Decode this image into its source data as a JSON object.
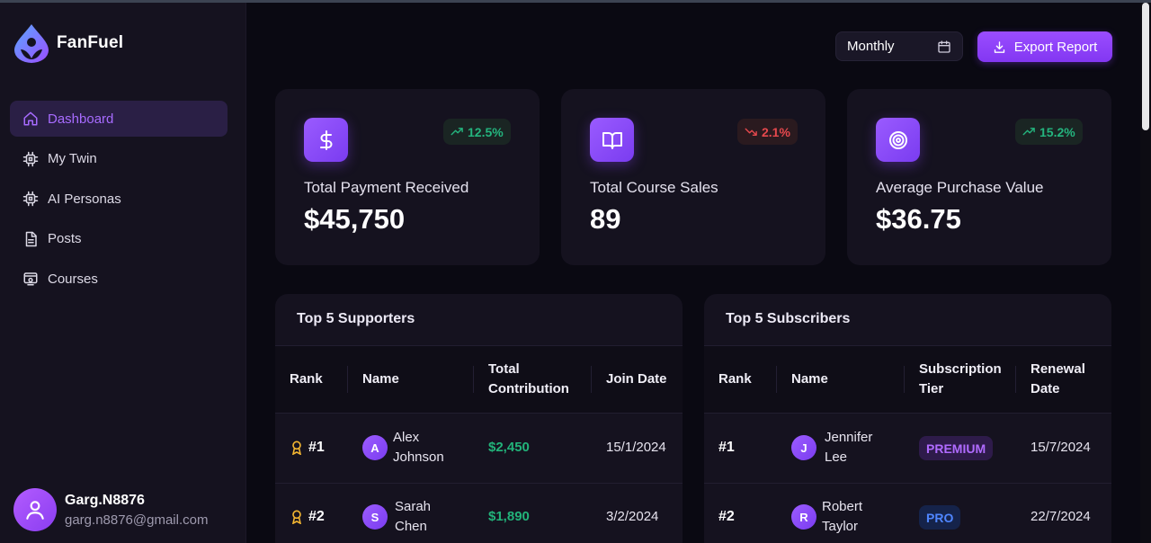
{
  "brand": {
    "name": "FanFuel"
  },
  "sidebar": {
    "items": [
      {
        "label": "Dashboard",
        "icon": "home-icon",
        "active": true
      },
      {
        "label": "My Twin",
        "icon": "chip-icon",
        "active": false
      },
      {
        "label": "AI Personas",
        "icon": "chip-icon",
        "active": false
      },
      {
        "label": "Posts",
        "icon": "document-icon",
        "active": false
      },
      {
        "label": "Courses",
        "icon": "course-icon",
        "active": false
      }
    ]
  },
  "user": {
    "name": "Garg.N8876",
    "email": "garg.n8876@gmail.com"
  },
  "toolbar": {
    "period": "Monthly",
    "export_label": "Export Report"
  },
  "stats": [
    {
      "label": "Total Payment Received",
      "value": "$45,750",
      "trend": "12.5%",
      "direction": "up",
      "icon": "dollar-icon"
    },
    {
      "label": "Total Course Sales",
      "value": "89",
      "trend": "2.1%",
      "direction": "down",
      "icon": "book-icon"
    },
    {
      "label": "Average Purchase Value",
      "value": "$36.75",
      "trend": "15.2%",
      "direction": "up",
      "icon": "target-icon"
    }
  ],
  "supporters": {
    "title": "Top 5 Supporters",
    "headers": [
      "Rank",
      "Name",
      "Total Contribution",
      "Join Date"
    ],
    "rows": [
      {
        "rank": "#1",
        "initial": "A",
        "name": "Alex Johnson",
        "amount": "$2,450",
        "date": "15/1/2024"
      },
      {
        "rank": "#2",
        "initial": "S",
        "name": "Sarah Chen",
        "amount": "$1,890",
        "date": "3/2/2024"
      }
    ]
  },
  "subscribers": {
    "title": "Top 5 Subscribers",
    "headers": [
      "Rank",
      "Name",
      "Subscription Tier",
      "Renewal Date"
    ],
    "rows": [
      {
        "rank": "#1",
        "initial": "J",
        "name": "Jennifer Lee",
        "tier": "PREMIUM",
        "date": "15/7/2024"
      },
      {
        "rank": "#2",
        "initial": "R",
        "name": "Robert Taylor",
        "tier": "PRO",
        "date": "22/7/2024"
      }
    ]
  },
  "colors": {
    "accent": "#9a4dff",
    "positive": "#24b47e",
    "negative": "#e5484d",
    "background": "#0a0912",
    "card": "#15121f"
  }
}
